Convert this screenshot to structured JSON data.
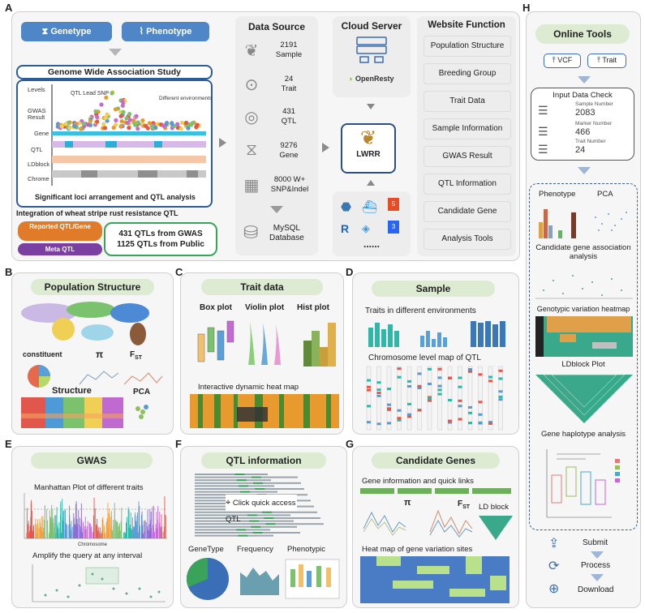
{
  "panels": {
    "A": "A",
    "B": "B",
    "C": "C",
    "D": "D",
    "E": "E",
    "F": "F",
    "G": "G",
    "H": "H"
  },
  "panelA": {
    "genotype": "Genetype",
    "phenotype": "Phenotype",
    "gwas_title": "Genome Wide Association Study",
    "levels": "Levels",
    "qtl_lead": "QTL Lead SNP",
    "diff_env": "Different environments",
    "track_labels": [
      "GWAS Result",
      "Gene",
      "QTL",
      "LDblock",
      "Chrome"
    ],
    "sig_loci": "Significant loci arrangement and QTL analysis",
    "integration": "Integration of wheat stripe rust resistance QTL",
    "reported": "Reported QTL/Gene",
    "meta": "Meta QTL",
    "qtl_gwas": "431 QTLs from GWAS",
    "qtl_public": "1125 QTLs from Public"
  },
  "data_source": {
    "title": "Data Source",
    "items": [
      {
        "icon": "wheat-icon",
        "value": "2191",
        "label": "Sample"
      },
      {
        "icon": "location-pin-icon",
        "value": "24",
        "label": "Trait"
      },
      {
        "icon": "target-icon",
        "value": "431",
        "label": "QTL"
      },
      {
        "icon": "dna-icon",
        "value": "9276",
        "label": "Gene"
      },
      {
        "icon": "grid-icon",
        "value": "8000 W+",
        "label": "SNP&Indel"
      }
    ],
    "db": "MySQL",
    "db2": "Database"
  },
  "cloud": {
    "title": "Cloud Server",
    "openresty": "OpenResty",
    "lwrr": "LWRR",
    "dots": "......"
  },
  "website_function": {
    "title": "Website Function",
    "items": [
      "Population Structure",
      "Breeding Group",
      "Trait Data",
      "Sample Information",
      "GWAS Result",
      "QTL Information",
      "Candidate Gene",
      "Analysis Tools"
    ]
  },
  "panelB": {
    "title": "Population Structure",
    "constituent": "constituent",
    "pi": "π",
    "fst": "F",
    "fst_sub": "ST",
    "structure": "Structure",
    "pca": "PCA"
  },
  "panelC": {
    "title": "Trait data",
    "box": "Box plot",
    "violin": "Violin plot",
    "hist": "Hist plot",
    "heat": "Interactive dynamic heat map"
  },
  "panelD": {
    "title": "Sample",
    "traits": "Traits in different environments",
    "chrom": "Chromosome level map of QTL"
  },
  "panelE": {
    "title": "GWAS",
    "manhattan": "Manhattan Plot of different traits",
    "amplify": "Amplify the query at any interval",
    "xlabel": "Chromosome"
  },
  "panelF": {
    "title": "QTL information",
    "click": "Click quick access QTL",
    "genotype": "GeneType",
    "frequency": "Frequency",
    "phenotypic": "Phenotypic"
  },
  "panelG": {
    "title": "Candidate Genes",
    "links": "Gene information and quick links",
    "pi": "π",
    "fst": "F",
    "fst_sub": "ST",
    "ld": "LD block",
    "heat": "Heat map of gene variation sites"
  },
  "panelH": {
    "title": "Online Tools",
    "vcf": "VCF",
    "trait": "Trait",
    "check": "Input Data Check",
    "sample_label": "Sample Number",
    "sample_val": "2083",
    "marker_label": "Marker Number",
    "marker_val": "466",
    "trait_label": "Trait Number",
    "trait_val": "24",
    "phenotype": "Phenotype",
    "pca": "PCA",
    "candidate": "Candidate gene association analysis",
    "heatmap": "Genotypic variation heatmap",
    "ldblock": "LDblock Plot",
    "haplotype": "Gene haplotype analysis",
    "submit": "Submit",
    "process": "Process",
    "download": "Download"
  },
  "colors": {
    "blue": "#4e86c8",
    "green_head": "#dcebd2",
    "orange": "#e07b2a",
    "purple": "#7a3fa0",
    "green_border": "#3aa35a"
  }
}
